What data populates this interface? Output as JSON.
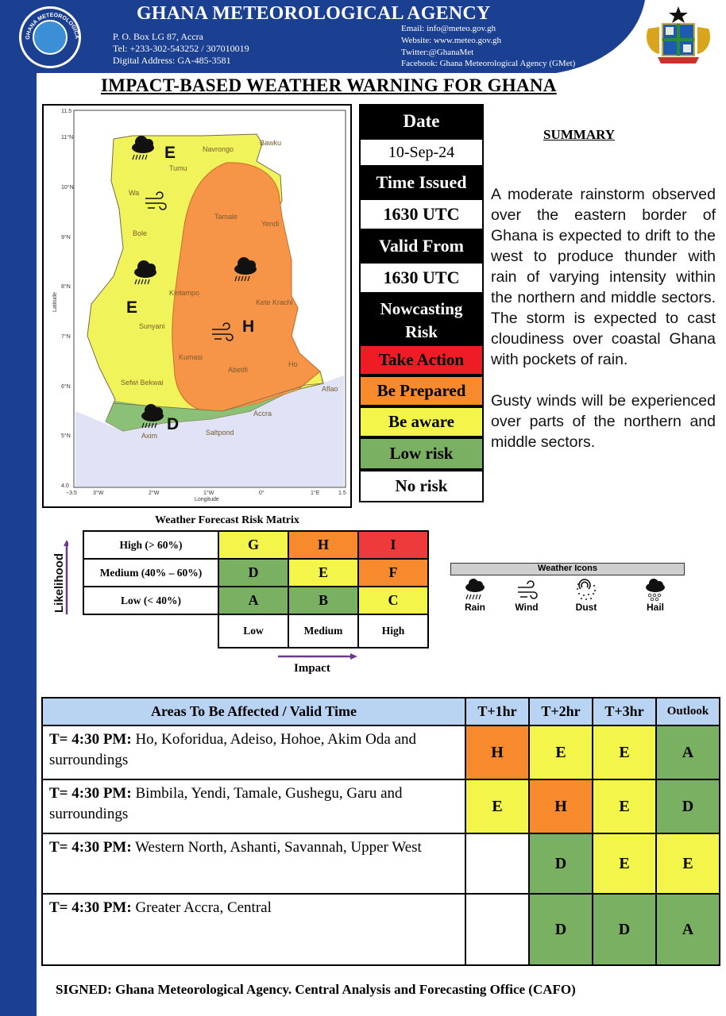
{
  "header": {
    "agency_name": "GHANA METEOROLOGICAL AGENCY",
    "logo_text": "GHANA METEOROLOGICAL AGENCY",
    "address_lines": [
      "P. O. Box  LG 87, Accra",
      "Tel: +233-302-543252 / 307010019",
      "Digital Address: GA-485-3581"
    ],
    "contact_lines": [
      "Email: info@meteo.gov.gh",
      "Website: www.meteo.gov.gh",
      "Twitter:@GhanaMet",
      "Facebook: Ghana Meteorological Agency (GMet)"
    ],
    "title": "IMPACT-BASED WEATHER WARNING FOR GHANA"
  },
  "map": {
    "lat_ticks": [
      "11.5",
      "11°N",
      "10°N",
      "9°N",
      "8°N",
      "7°N",
      "6°N",
      "5°N",
      "4.0"
    ],
    "lon_ticks": [
      "−3.5",
      "3°W",
      "2°W",
      "1°W",
      "0°",
      "1°E",
      "1.5"
    ],
    "ylabel": "Latitude",
    "xlabel": "Longitude",
    "towns": [
      "Bawku",
      "Navrongo",
      "Tumu",
      "Wa",
      "Bole",
      "Tamale",
      "Yendi",
      "Kintampo",
      "Kete Krachi",
      "Sunyani",
      "Kumasi",
      "Abetifi",
      "Ho",
      "Sefwi Bekwai",
      "Aflao",
      "Accra",
      "Saltpond",
      "Axim"
    ],
    "zone_letters": [
      "E",
      "E",
      "H",
      "D"
    ]
  },
  "info": {
    "date_label": "Date",
    "date_value": "10-Sep-24",
    "time_issued_label": "Time Issued",
    "time_issued_value": "1630 UTC",
    "valid_from_label": "Valid From",
    "valid_from_value": "1630 UTC",
    "nowcasting_label_1": "Nowcasting",
    "nowcasting_label_2": "Risk"
  },
  "risk_legend": [
    {
      "label": "Take Action",
      "color": "#ee1c24"
    },
    {
      "label": "Be Prepared",
      "color": "#f68a2c"
    },
    {
      "label": "Be aware",
      "color": "#f3f54a"
    },
    {
      "label": "Low risk",
      "color": "#7ab061"
    },
    {
      "label": "No risk",
      "color": "#ffffff"
    }
  ],
  "summary": {
    "title": "SUMMARY",
    "paragraph_1": "A moderate rainstorm observed over the eastern border of Ghana is expected to drift to the west to produce thunder with rain of varying intensity within the northern and middle sectors. The storm is expected to cast cloudiness over coastal Ghana with pockets of rain.",
    "paragraph_2": "Gusty winds will be experienced over parts of the northern and middle sectors."
  },
  "matrix": {
    "title": "Weather Forecast Risk Matrix",
    "likelihood_label": "Likelihood",
    "impact_label": "Impact",
    "rows": [
      {
        "label": "High (> 60%)",
        "cells": [
          "G",
          "H",
          "I"
        ]
      },
      {
        "label": "Medium (40% – 60%)",
        "cells": [
          "D",
          "E",
          "F"
        ]
      },
      {
        "label": "Low (< 40%)",
        "cells": [
          "A",
          "B",
          "C"
        ]
      }
    ],
    "columns": [
      "Low",
      "Medium",
      "High"
    ]
  },
  "weather_icons": {
    "title": "Weather Icons",
    "items": [
      "Rain",
      "Wind",
      "Dust",
      "Hail"
    ]
  },
  "areas": {
    "header": "Areas To Be Affected / Valid Time",
    "col_headers": [
      "T+1hr",
      "T+2hr",
      "T+3hr",
      "Outlook"
    ],
    "rows": [
      {
        "time": "T= 4:30 PM:",
        "places": " Ho, Koforidua, Adeiso, Hohoe, Akim Oda and surroundings",
        "ratings": [
          "H",
          "E",
          "E",
          "A"
        ]
      },
      {
        "time": "T= 4:30 PM:",
        "places": " Bimbila, Yendi, Tamale, Gushegu, Garu and surroundings",
        "ratings": [
          "E",
          "H",
          "E",
          "D"
        ]
      },
      {
        "time": "T= 4:30 PM:",
        "places": " Western North, Ashanti, Savannah, Upper West",
        "ratings": [
          "",
          "D",
          "E",
          "E"
        ]
      },
      {
        "time": "T= 4:30 PM:",
        "places": " Greater Accra, Central",
        "ratings": [
          "",
          "D",
          "D",
          "A"
        ]
      }
    ]
  },
  "signed": "SIGNED: Ghana Meteorological Agency. Central Analysis and Forecasting Office (CAFO)",
  "colors": {
    "brand_blue": "#1b3f91",
    "orange": "#f68a2c",
    "yellow": "#f3f54a",
    "green": "#7ab061",
    "red": "#ee1c24",
    "table_header": "#b9d3f2"
  }
}
